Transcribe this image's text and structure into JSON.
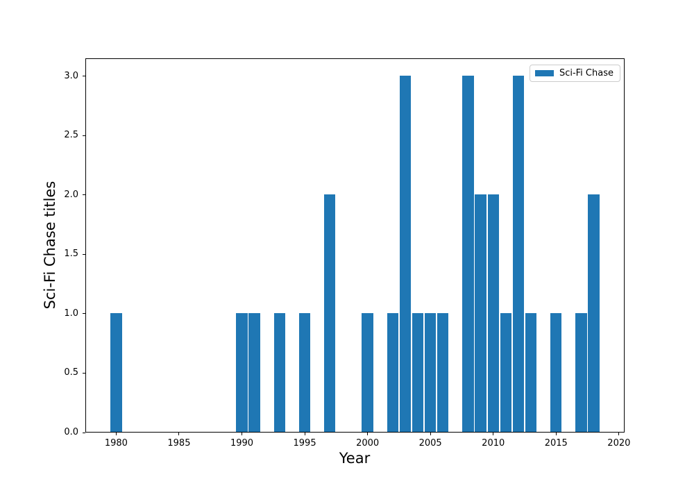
{
  "chart_data": {
    "type": "bar",
    "title": "",
    "xlabel": "Year",
    "ylabel": "Sci-Fi Chase titles",
    "legend": {
      "label": "Sci-Fi Chase",
      "position": "upper right"
    },
    "bar_color": "#1f77b4",
    "background_color": "#ffffff",
    "spine_color": "#000000",
    "legend_border_color": "#cccccc",
    "x": [
      1980,
      1990,
      1991,
      1993,
      1995,
      1997,
      2000,
      2002,
      2003,
      2004,
      2005,
      2006,
      2008,
      2009,
      2010,
      2011,
      2012,
      2013,
      2015,
      2017,
      2018
    ],
    "values": [
      1,
      1,
      1,
      1,
      1,
      2,
      1,
      1,
      3,
      1,
      1,
      1,
      3,
      2,
      2,
      1,
      3,
      1,
      1,
      1,
      2
    ],
    "bar_width_years": 0.9,
    "xlim": [
      1977.55,
      2020.45
    ],
    "ylim": [
      0,
      3.15
    ],
    "xticks": [
      1980,
      1985,
      1990,
      1995,
      2000,
      2005,
      2010,
      2015,
      2020
    ],
    "ytick_labels": [
      "0.0",
      "0.5",
      "1.0",
      "1.5",
      "2.0",
      "2.5",
      "3.0"
    ],
    "grid": false
  }
}
